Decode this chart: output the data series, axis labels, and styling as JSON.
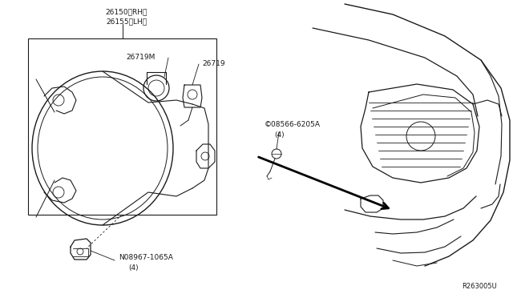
{
  "background_color": "#ffffff",
  "fig_width": 6.4,
  "fig_height": 3.72,
  "dpi": 100,
  "text_color": "#1a1a1a",
  "line_color": "#1a1a1a",
  "font_size": 6.5,
  "diagram_ref": "R263005U",
  "labels": {
    "part_26150": "26150〈RH〉",
    "part_26155": "26155〈LH〉",
    "part_26719M": "26719M",
    "part_26719": "26719",
    "part_08566": "©08566-6205A",
    "part_08566_sub": "(4)",
    "part_08967": "N08967-1065A",
    "part_08967_sub": "(4)"
  }
}
